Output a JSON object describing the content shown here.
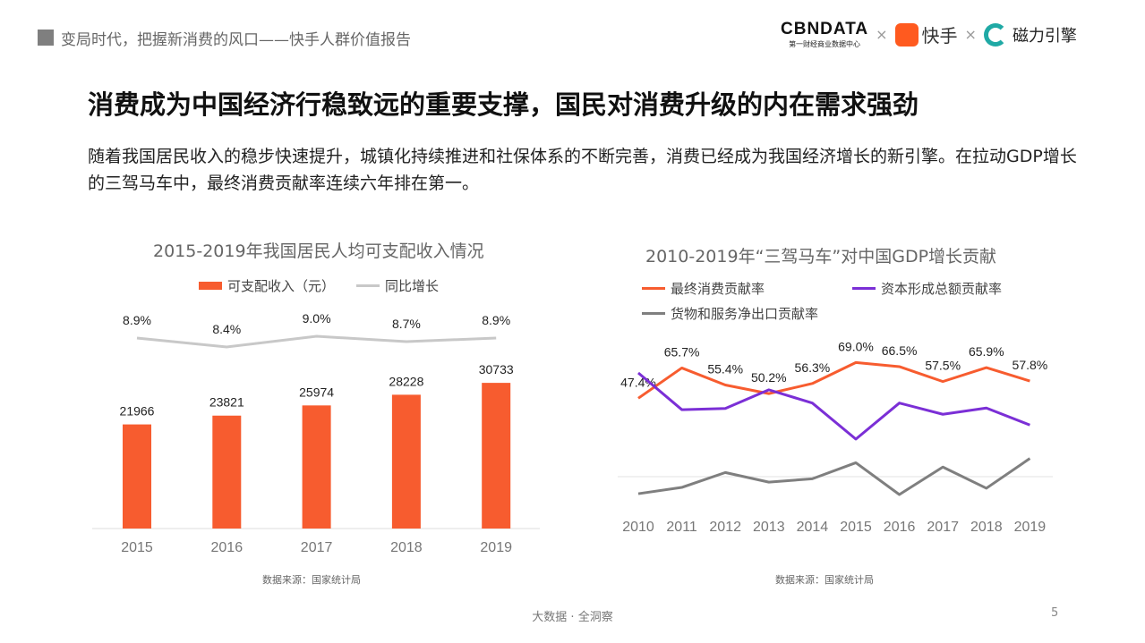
{
  "header": {
    "report_title": "变局时代，把握新消费的风口——快手人群价值报告",
    "logos": {
      "cbndata": "CBNDATA",
      "cbndata_sub": "第一财经商业数据中心",
      "kuaishou": "快手",
      "cili": "磁力引擎",
      "separator": "×"
    }
  },
  "slide": {
    "title": "消费成为中国经济行稳致远的重要支撑，国民对消费升级的内在需求强劲",
    "description": "随着我国居民收入的稳步快速提升，城镇化持续推进和社保体系的不断完善，消费已经成为我国经济增长的新引擎。在拉动GDP增长的三驾马车中，最终消费贡献率连续六年排在第一。"
  },
  "chart_data": [
    {
      "type": "bar",
      "title": "2015-2019年我国居民人均可支配收入情况",
      "categories": [
        "2015",
        "2016",
        "2017",
        "2018",
        "2019"
      ],
      "series": [
        {
          "name": "可支配收入（元）",
          "type": "bar",
          "color": "#f75c2f",
          "values": [
            21966,
            23821,
            25974,
            28228,
            30733
          ],
          "labels": [
            "21966",
            "23821",
            "25974",
            "28228",
            "30733"
          ]
        },
        {
          "name": "同比增长",
          "type": "line",
          "color": "#c8c8c8",
          "values": [
            8.9,
            8.4,
            9.0,
            8.7,
            8.9
          ],
          "labels": [
            "8.9%",
            "8.4%",
            "9.0%",
            "8.7%",
            "8.9%"
          ]
        }
      ],
      "legend": "top",
      "grid": false,
      "source": "数据来源：国家统计局"
    },
    {
      "type": "line",
      "title": "2010-2019年“三驾马车”对中国GDP增长贡献",
      "categories": [
        "2010",
        "2011",
        "2012",
        "2013",
        "2014",
        "2015",
        "2016",
        "2017",
        "2018",
        "2019"
      ],
      "series": [
        {
          "name": "最终消费贡献率",
          "color": "#f75c2f",
          "values": [
            47.4,
            65.7,
            55.4,
            50.2,
            56.3,
            69.0,
            66.5,
            57.5,
            65.9,
            57.8
          ],
          "labels": [
            "47.4%",
            "65.7%",
            "55.4%",
            "50.2%",
            "56.3%",
            "69.0%",
            "66.5%",
            "57.5%",
            "65.9%",
            "57.8%"
          ]
        },
        {
          "name": "资本形成总额贡献率",
          "color": "#7b2fd6",
          "values": [
            62.7,
            40.5,
            41.2,
            52.5,
            44.5,
            22.7,
            44.5,
            37.7,
            41.5,
            31.2
          ]
        },
        {
          "name": "货物和服务净出口贡献率",
          "color": "#7f7f7f",
          "values": [
            -10.3,
            -6.5,
            2.5,
            -3.3,
            -1.3,
            8.4,
            -10.8,
            5.8,
            -7.0,
            11.0
          ]
        }
      ],
      "legend": "top",
      "grid": false,
      "source": "数据来源：国家统计局"
    }
  ],
  "footer": {
    "text": "大数据 · 全洞察",
    "page": "5"
  }
}
